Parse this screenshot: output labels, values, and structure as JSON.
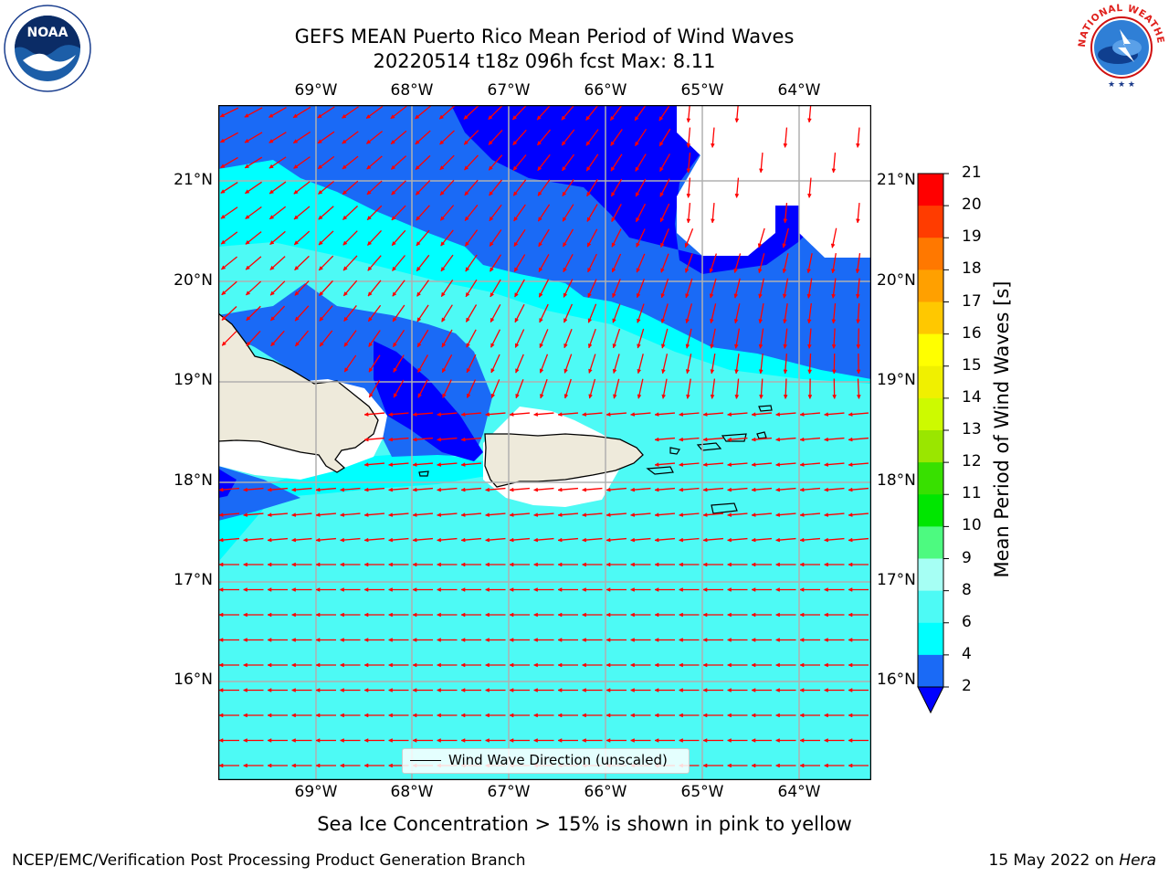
{
  "header": {
    "title_line1": "GEFS MEAN Puerto Rico Mean Period of Wind Waves",
    "title_line2": "20220514 t18z 096h fcst   Max: 8.11"
  },
  "map": {
    "lon_labels": [
      "69°W",
      "68°W",
      "67°W",
      "66°W",
      "65°W",
      "64°W"
    ],
    "lat_labels": [
      "21°N",
      "20°N",
      "19°N",
      "18°N",
      "17°N",
      "16°N"
    ],
    "legend_label": "Wind Wave Direction (unscaled)",
    "land_color": "#eeeadb",
    "arrow_color": "#ff0000"
  },
  "colorbar": {
    "title": "Mean Period of Wind Waves [s]",
    "tick_labels": [
      "2",
      "4",
      "6",
      "8",
      "9",
      "10",
      "11",
      "12",
      "13",
      "14",
      "15",
      "16",
      "17",
      "18",
      "19",
      "20",
      "21"
    ],
    "colors": [
      "#0000ff",
      "#1a6af6",
      "#00ffff",
      "#4dfaf5",
      "#a6fff4",
      "#4dfa80",
      "#00e600",
      "#38e000",
      "#9ae600",
      "#cdfa00",
      "#f0f000",
      "#ffff00",
      "#ffc800",
      "#ffa000",
      "#ff7800",
      "#ff3c00",
      "#ff0000"
    ]
  },
  "caption": "Sea Ice Concentration > 15% is shown in pink to yellow",
  "footer": {
    "left": "NCEP/EMC/Verification Post Processing Product Generation Branch",
    "date": "15 May 2022 on ",
    "host": "Hera"
  },
  "logos": {
    "noaa": "NOAA",
    "nws_text": "NATIONAL WEATHER SERVICE"
  }
}
